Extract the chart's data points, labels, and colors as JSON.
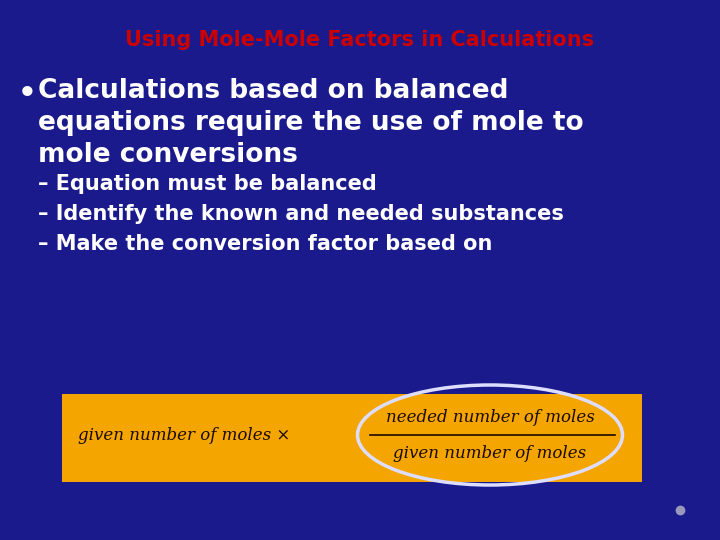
{
  "bg_color": "#1a1a8c",
  "title": "Using Mole-Mole Factors in Calculations",
  "title_color": "#cc0000",
  "title_fontsize": 15,
  "bullet_char": "•",
  "bullet_text_line1": "Calculations based on balanced",
  "bullet_text_line2": "equations require the use of mole to",
  "bullet_text_line3": "mole conversions",
  "bullet_color": "#ffffff",
  "bullet_fontsize": 19,
  "sub_bullets": [
    "– Equation must be balanced",
    "– Identify the known and needed substances",
    "– Make the conversion factor based on"
  ],
  "sub_bullet_color": "#ffffff",
  "sub_bullet_fontsize": 15,
  "orange_box_color": "#f5a500",
  "formula_left": "given number of moles ×",
  "formula_numerator": "needed number of moles",
  "formula_denominator": "given number of moles",
  "formula_color": "#1a0a00",
  "formula_fontsize": 12,
  "ellipse_color": "#ddddff",
  "dot_color": "#9999bb"
}
